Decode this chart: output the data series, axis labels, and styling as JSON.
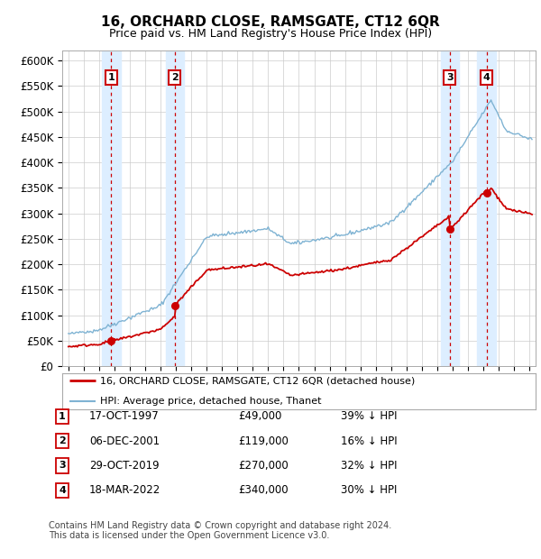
{
  "title": "16, ORCHARD CLOSE, RAMSGATE, CT12 6QR",
  "subtitle": "Price paid vs. HM Land Registry's House Price Index (HPI)",
  "ylabel_ticks": [
    "£0",
    "£50K",
    "£100K",
    "£150K",
    "£200K",
    "£250K",
    "£300K",
    "£350K",
    "£400K",
    "£450K",
    "£500K",
    "£550K",
    "£600K"
  ],
  "ytick_values": [
    0,
    50000,
    100000,
    150000,
    200000,
    250000,
    300000,
    350000,
    400000,
    450000,
    500000,
    550000,
    600000
  ],
  "xlim": [
    1994.6,
    2025.4
  ],
  "ylim": [
    0,
    620000
  ],
  "transactions": [
    {
      "date": "17-OCT-1997",
      "year": 1997.79,
      "price": 49000,
      "label": "1",
      "pct": "39% ↓ HPI"
    },
    {
      "date": "06-DEC-2001",
      "year": 2001.92,
      "price": 119000,
      "label": "2",
      "pct": "16% ↓ HPI"
    },
    {
      "date": "29-OCT-2019",
      "year": 2019.82,
      "price": 270000,
      "label": "3",
      "pct": "32% ↓ HPI"
    },
    {
      "date": "18-MAR-2022",
      "year": 2022.21,
      "price": 340000,
      "label": "4",
      "pct": "30% ↓ HPI"
    }
  ],
  "legend_entries": [
    "16, ORCHARD CLOSE, RAMSGATE, CT12 6QR (detached house)",
    "HPI: Average price, detached house, Thanet"
  ],
  "footer_lines": [
    "Contains HM Land Registry data © Crown copyright and database right 2024.",
    "This data is licensed under the Open Government Licence v3.0."
  ],
  "transaction_table": [
    [
      "1",
      "17-OCT-1997",
      "£49,000",
      "39% ↓ HPI"
    ],
    [
      "2",
      "06-DEC-2001",
      "£119,000",
      "16% ↓ HPI"
    ],
    [
      "3",
      "29-OCT-2019",
      "£270,000",
      "32% ↓ HPI"
    ],
    [
      "4",
      "18-MAR-2022",
      "£340,000",
      "30% ↓ HPI"
    ]
  ],
  "red_line_color": "#cc0000",
  "blue_line_color": "#7fb3d3",
  "vline_color": "#cc0000",
  "shade_color": "#ddeeff",
  "dot_color": "#cc0000",
  "grid_color": "#cccccc",
  "box_color": "#cc0000",
  "background_color": "#ffffff"
}
